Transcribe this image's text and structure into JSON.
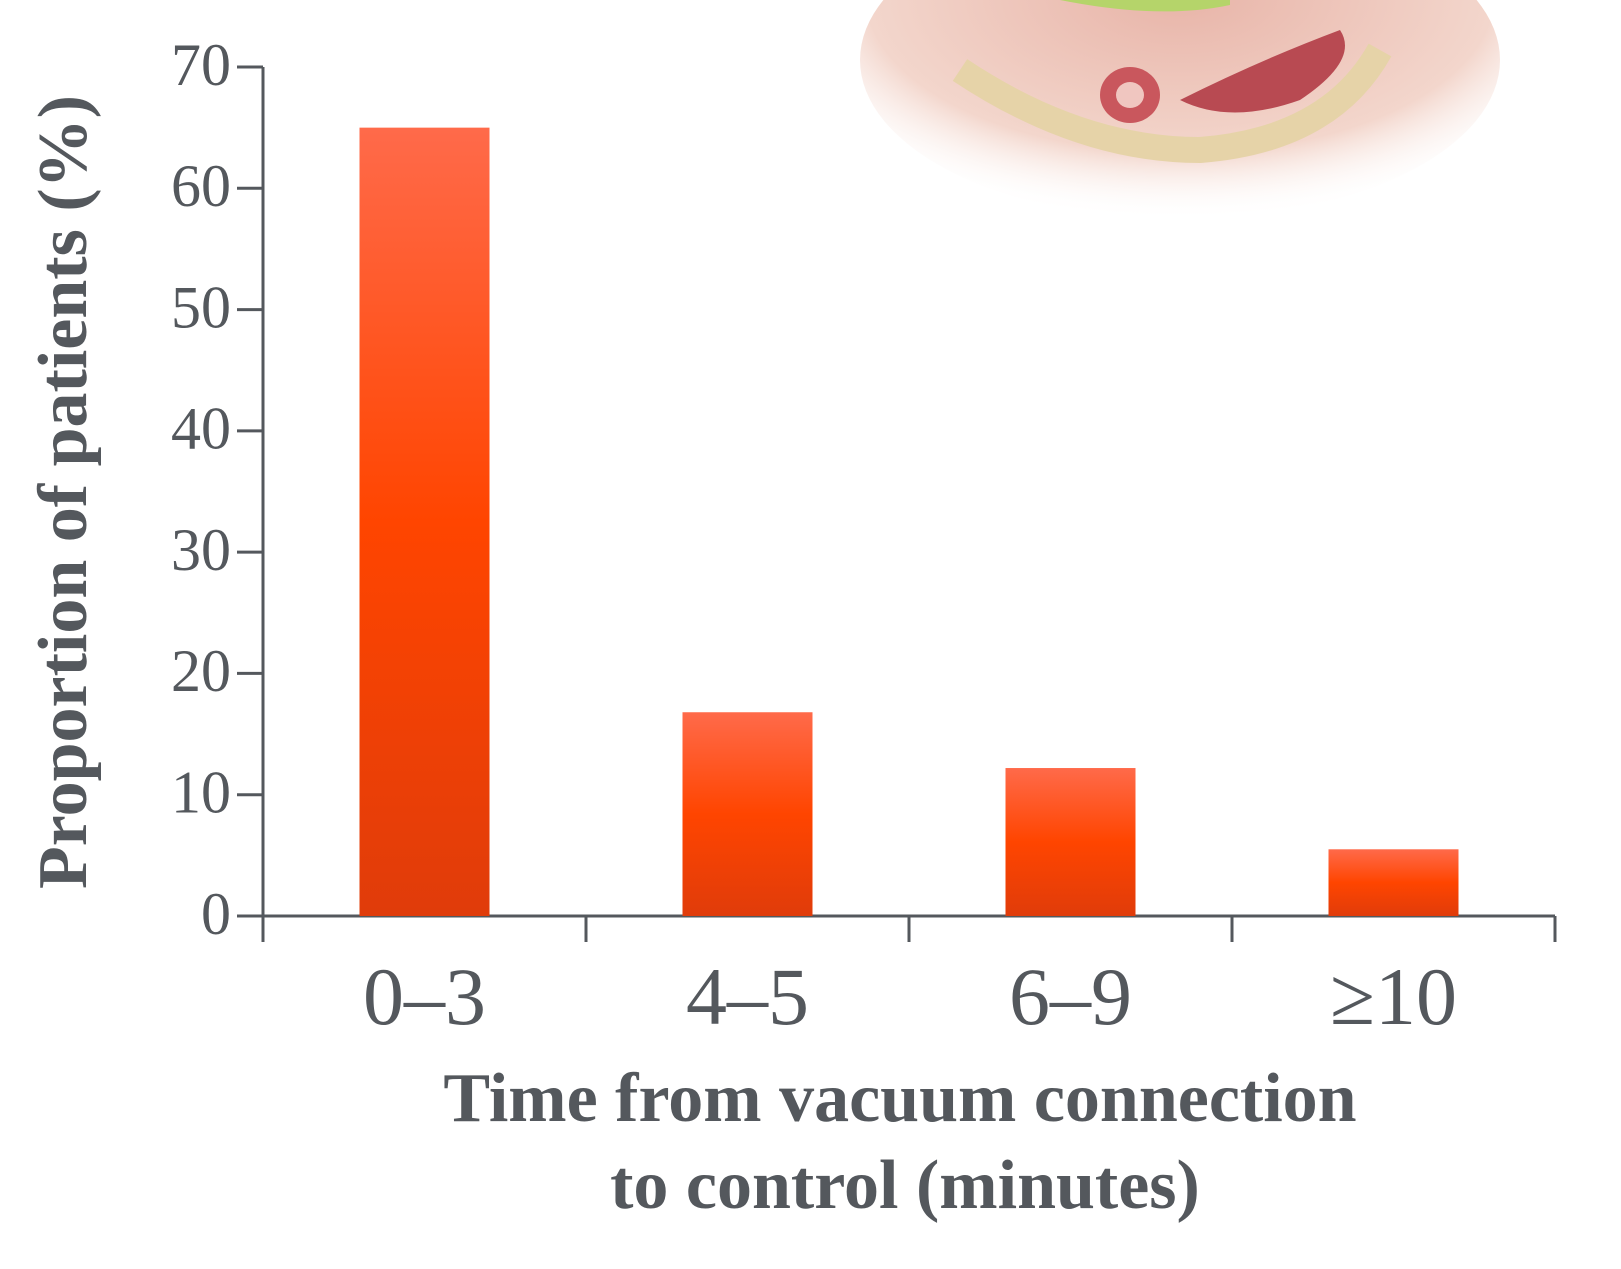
{
  "chart_data": {
    "type": "bar",
    "categories": [
      "0–3",
      "4–5",
      "6–9",
      "≥10"
    ],
    "values": [
      65,
      16.8,
      12.2,
      5.5
    ],
    "color": "#ff4500",
    "ylim": [
      0,
      70
    ],
    "yticks": [
      0,
      10,
      20,
      30,
      40,
      50,
      60,
      70
    ],
    "y_label": "Proportion of patients (%)",
    "x_label": [
      "Time from vacuum connection",
      "to control (minutes)"
    ]
  }
}
